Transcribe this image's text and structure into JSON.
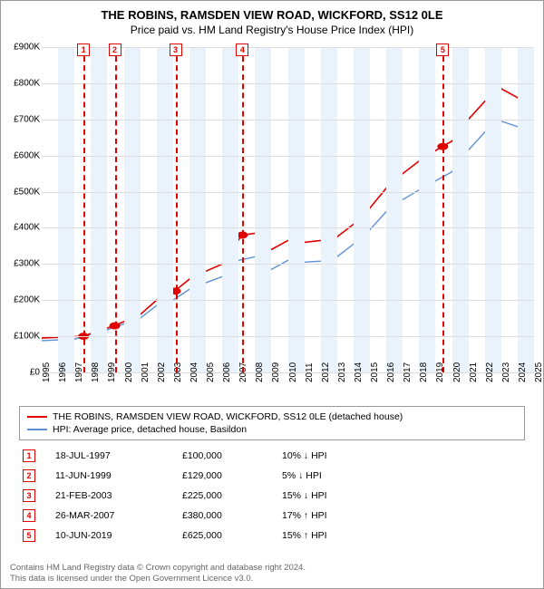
{
  "title": "THE ROBINS, RAMSDEN VIEW ROAD, WICKFORD, SS12 0LE",
  "subtitle": "Price paid vs. HM Land Registry's House Price Index (HPI)",
  "chart": {
    "type": "line",
    "xlim": [
      1995,
      2025
    ],
    "ylim": [
      0,
      900000
    ],
    "ytick_step": 100000,
    "yticks": [
      "£0",
      "£100K",
      "£200K",
      "£300K",
      "£400K",
      "£500K",
      "£600K",
      "£700K",
      "£800K",
      "£900K"
    ],
    "xticks": [
      1995,
      1996,
      1997,
      1998,
      1999,
      2000,
      2001,
      2002,
      2003,
      2004,
      2005,
      2006,
      2007,
      2008,
      2009,
      2010,
      2011,
      2012,
      2013,
      2014,
      2015,
      2016,
      2017,
      2018,
      2019,
      2020,
      2021,
      2022,
      2023,
      2024,
      2025
    ],
    "band_years": [
      [
        1996,
        1997
      ],
      [
        1998,
        1999
      ],
      [
        2000,
        2001
      ],
      [
        2002,
        2003
      ],
      [
        2004,
        2005
      ],
      [
        2006,
        2007
      ],
      [
        2008,
        2009
      ],
      [
        2010,
        2011
      ],
      [
        2012,
        2013
      ],
      [
        2014,
        2015
      ],
      [
        2016,
        2017
      ],
      [
        2018,
        2019
      ],
      [
        2020,
        2021
      ],
      [
        2022,
        2023
      ],
      [
        2024,
        2025
      ]
    ],
    "grid_color": "#dddddd",
    "band_color": "#eaf2fb",
    "background": "#ffffff",
    "series": {
      "subject": {
        "label": "THE ROBINS, RAMSDEN VIEW ROAD, WICKFORD, SS12 0LE (detached house)",
        "color": "#e00000",
        "width": 1.6,
        "points": [
          [
            1995,
            95000
          ],
          [
            1997.5,
            100000
          ],
          [
            1999.4,
            129000
          ],
          [
            2001,
            160000
          ],
          [
            2002,
            200000
          ],
          [
            2003.1,
            225000
          ],
          [
            2004,
            258000
          ],
          [
            2005,
            280000
          ],
          [
            2006,
            300000
          ],
          [
            2007.2,
            380000
          ],
          [
            2008,
            385000
          ],
          [
            2009,
            340000
          ],
          [
            2010,
            365000
          ],
          [
            2011,
            360000
          ],
          [
            2012,
            365000
          ],
          [
            2013,
            375000
          ],
          [
            2014,
            410000
          ],
          [
            2015,
            455000
          ],
          [
            2016,
            510000
          ],
          [
            2017,
            550000
          ],
          [
            2018,
            585000
          ],
          [
            2019.4,
            625000
          ],
          [
            2020,
            640000
          ],
          [
            2021,
            700000
          ],
          [
            2022,
            750000
          ],
          [
            2023,
            785000
          ],
          [
            2024,
            760000
          ],
          [
            2024.7,
            745000
          ]
        ]
      },
      "hpi": {
        "label": "HPI: Average price, detached house, Basildon",
        "color": "#5b8fd6",
        "width": 1.4,
        "points": [
          [
            1995,
            88000
          ],
          [
            1997,
            92000
          ],
          [
            1999,
            118000
          ],
          [
            2001,
            150000
          ],
          [
            2002,
            185000
          ],
          [
            2003,
            200000
          ],
          [
            2004,
            230000
          ],
          [
            2005,
            248000
          ],
          [
            2006,
            265000
          ],
          [
            2007,
            310000
          ],
          [
            2008,
            320000
          ],
          [
            2009,
            285000
          ],
          [
            2010,
            310000
          ],
          [
            2011,
            305000
          ],
          [
            2012,
            308000
          ],
          [
            2013,
            320000
          ],
          [
            2014,
            355000
          ],
          [
            2015,
            395000
          ],
          [
            2016,
            445000
          ],
          [
            2017,
            478000
          ],
          [
            2018,
            505000
          ],
          [
            2019,
            530000
          ],
          [
            2020,
            555000
          ],
          [
            2021,
            615000
          ],
          [
            2022,
            665000
          ],
          [
            2023,
            695000
          ],
          [
            2024,
            680000
          ],
          [
            2024.7,
            690000
          ]
        ]
      }
    },
    "sale_markers": [
      {
        "n": "1",
        "year": 1997.55,
        "price": 100000,
        "dash": "#e00000"
      },
      {
        "n": "2",
        "year": 1999.45,
        "price": 129000,
        "dash": "#e00000"
      },
      {
        "n": "3",
        "year": 2003.15,
        "price": 225000,
        "dash": "#e00000"
      },
      {
        "n": "4",
        "year": 2007.23,
        "price": 380000,
        "dash": "#e00000"
      },
      {
        "n": "5",
        "year": 2019.44,
        "price": 625000,
        "dash": "#e00000"
      }
    ]
  },
  "legend": [
    {
      "color": "#e00000",
      "text": "THE ROBINS, RAMSDEN VIEW ROAD, WICKFORD, SS12 0LE (detached house)"
    },
    {
      "color": "#5b8fd6",
      "text": "HPI: Average price, detached house, Basildon"
    }
  ],
  "table": [
    {
      "n": "1",
      "date": "18-JUL-1997",
      "price": "£100,000",
      "diff": "10% ↓ HPI"
    },
    {
      "n": "2",
      "date": "11-JUN-1999",
      "price": "£129,000",
      "diff": "5% ↓ HPI"
    },
    {
      "n": "3",
      "date": "21-FEB-2003",
      "price": "£225,000",
      "diff": "15% ↓ HPI"
    },
    {
      "n": "4",
      "date": "26-MAR-2007",
      "price": "£380,000",
      "diff": "17% ↑ HPI"
    },
    {
      "n": "5",
      "date": "10-JUN-2019",
      "price": "£625,000",
      "diff": "15% ↑ HPI"
    }
  ],
  "footer": {
    "l1": "Contains HM Land Registry data © Crown copyright and database right 2024.",
    "l2": "This data is licensed under the Open Government Licence v3.0."
  }
}
